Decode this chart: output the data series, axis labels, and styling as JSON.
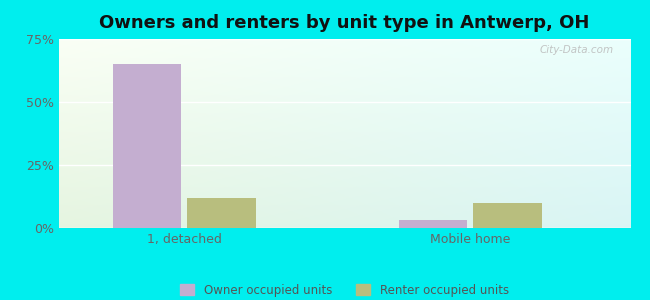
{
  "title": "Owners and renters by unit type in Antwerp, OH",
  "categories": [
    "1, detached",
    "Mobile home"
  ],
  "owner_values": [
    65.0,
    3.0
  ],
  "renter_values": [
    12.0,
    10.0
  ],
  "owner_color": "#c4aed0",
  "renter_color": "#b8be7e",
  "ylim": [
    0,
    75
  ],
  "yticks": [
    0,
    25,
    50,
    75
  ],
  "ytick_labels": [
    "0%",
    "25%",
    "50%",
    "75%"
  ],
  "bar_width": 0.12,
  "x_positions": [
    0.22,
    0.72
  ],
  "xlim": [
    0,
    1
  ],
  "outer_bg": "#00eeee",
  "legend_owner": "Owner occupied units",
  "legend_renter": "Renter occupied units",
  "watermark": "City-Data.com",
  "title_fontsize": 13,
  "label_fontsize": 9,
  "tick_fontsize": 9
}
